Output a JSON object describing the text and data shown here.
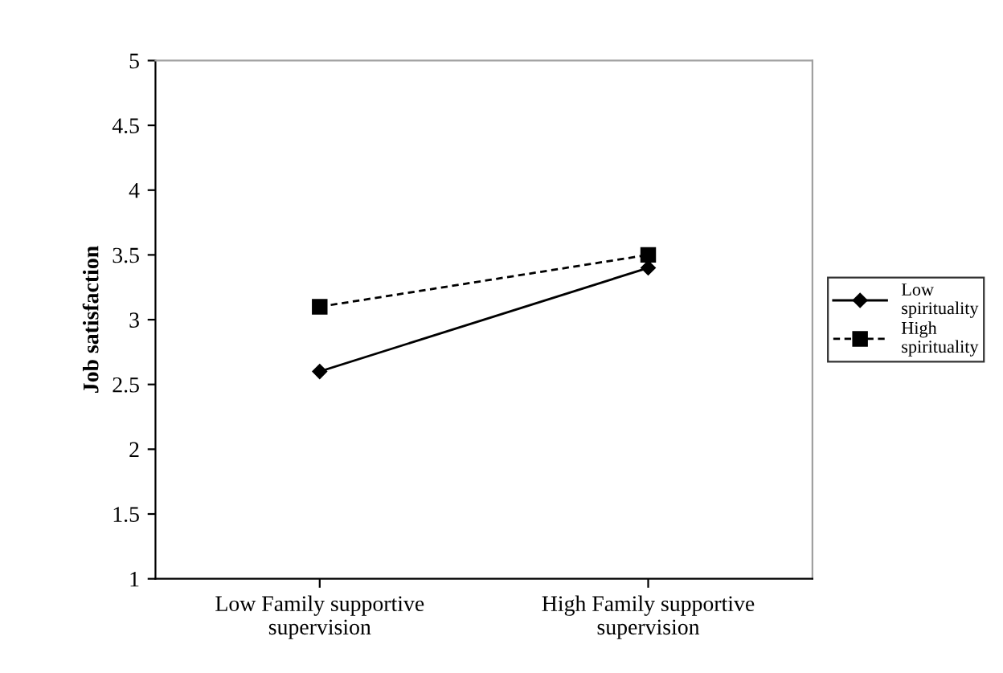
{
  "chart_data": {
    "type": "line",
    "ylabel": "Job satisfaction",
    "categories": [
      "Low Family supportive\nsupervision",
      "High Family supportive\nsupervision"
    ],
    "series": [
      {
        "name": "Low spirituality",
        "color": "#000000",
        "values": [
          2.6,
          3.4
        ],
        "marker": "diamond",
        "line_style": "solid"
      },
      {
        "name": "High spirituality",
        "color": "#000000",
        "values": [
          3.1,
          3.5
        ],
        "marker": "square",
        "line_style": "dashed"
      }
    ],
    "ylim": [
      1,
      5
    ],
    "yticks": [
      1,
      1.5,
      2,
      2.5,
      3,
      3.5,
      4,
      4.5,
      5
    ],
    "grid": false,
    "legend": "right"
  }
}
